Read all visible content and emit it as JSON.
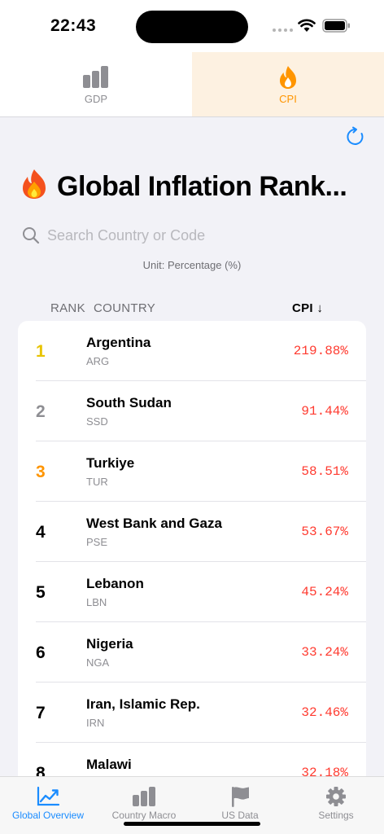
{
  "status_bar": {
    "time": "22:43"
  },
  "top_tabs": [
    {
      "label": "GDP",
      "icon": "bar-chart-icon",
      "active": false
    },
    {
      "label": "CPI",
      "icon": "flame-icon",
      "active": true
    }
  ],
  "title": "Global Inflation Rank...",
  "search": {
    "placeholder": "Search Country or Code",
    "value": ""
  },
  "unit_label": "Unit: Percentage (%)",
  "columns": {
    "rank": "RANK",
    "country": "COUNTRY",
    "cpi": "CPI ↓"
  },
  "colors": {
    "gold": "#e8c300",
    "silver": "#8e8e93",
    "bronze": "#ff9500",
    "value": "#ff3b30",
    "accent": "#1a8cff"
  },
  "rows": [
    {
      "rank": "1",
      "name": "Argentina",
      "code": "ARG",
      "value": "219.88%"
    },
    {
      "rank": "2",
      "name": "South Sudan",
      "code": "SSD",
      "value": "91.44%"
    },
    {
      "rank": "3",
      "name": "Turkiye",
      "code": "TUR",
      "value": "58.51%"
    },
    {
      "rank": "4",
      "name": "West Bank and Gaza",
      "code": "PSE",
      "value": "53.67%"
    },
    {
      "rank": "5",
      "name": "Lebanon",
      "code": "LBN",
      "value": "45.24%"
    },
    {
      "rank": "6",
      "name": "Nigeria",
      "code": "NGA",
      "value": "33.24%"
    },
    {
      "rank": "7",
      "name": "Iran, Islamic Rep.",
      "code": "IRN",
      "value": "32.46%"
    },
    {
      "rank": "8",
      "name": "Malawi",
      "code": "",
      "value": "32.18%"
    }
  ],
  "bottom_tabs": [
    {
      "label": "Global Overview",
      "icon": "trend-chart-icon",
      "active": true
    },
    {
      "label": "Country Macro",
      "icon": "bar-chart-icon",
      "active": false
    },
    {
      "label": "US Data",
      "icon": "flag-icon",
      "active": false
    },
    {
      "label": "Settings",
      "icon": "gear-icon",
      "active": false
    }
  ]
}
